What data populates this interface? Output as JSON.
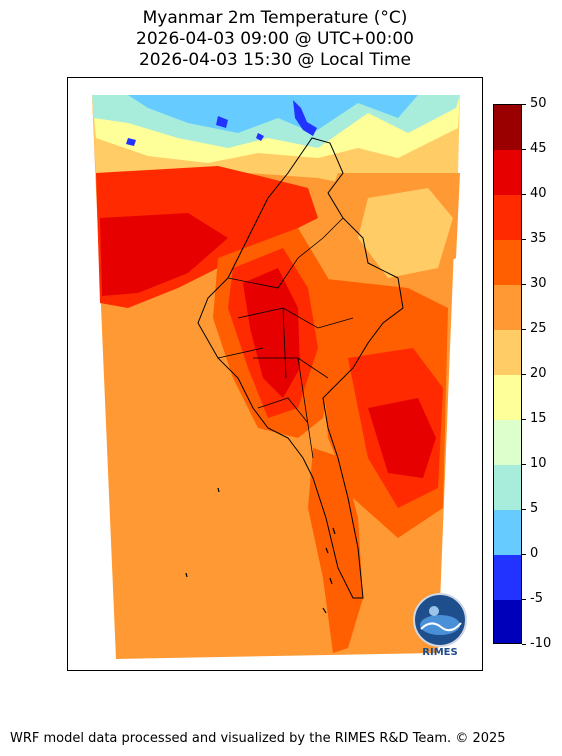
{
  "title": {
    "line1": "Myanmar 2m Temperature (°C)",
    "line2": "2026-04-03 09:00 @ UTC+00:00",
    "line3": "2026-04-03 15:30 @ Local Time"
  },
  "colorbar": {
    "labels": [
      "50",
      "45",
      "40",
      "35",
      "30",
      "25",
      "20",
      "15",
      "10",
      "5",
      "0",
      "-5",
      "-10"
    ],
    "range": [
      -10,
      50
    ],
    "step": 5,
    "colors": [
      "#9b0000",
      "#e60000",
      "#ff2a00",
      "#ff5f00",
      "#ff9933",
      "#ffcc66",
      "#ffff99",
      "#dcffcc",
      "#a8ecdc",
      "#66ccff",
      "#2233ff",
      "#0000bb"
    ]
  },
  "logo": {
    "text": "RIMES",
    "icon": "rimes-globe-logo"
  },
  "footer": "WRF model data processed and visualized by the RIMES R&D Team. © 2025"
}
